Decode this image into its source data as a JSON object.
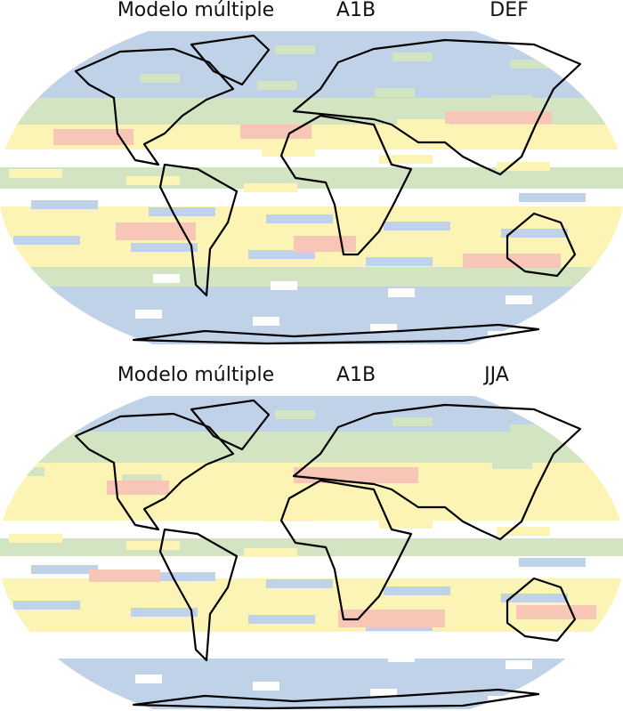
{
  "panels": [
    {
      "model": "Modelo múltiple",
      "scenario": "A1B",
      "season": "DEF"
    },
    {
      "model": "Modelo múltiple",
      "scenario": "A1B",
      "season": "JJA"
    }
  ]
}
